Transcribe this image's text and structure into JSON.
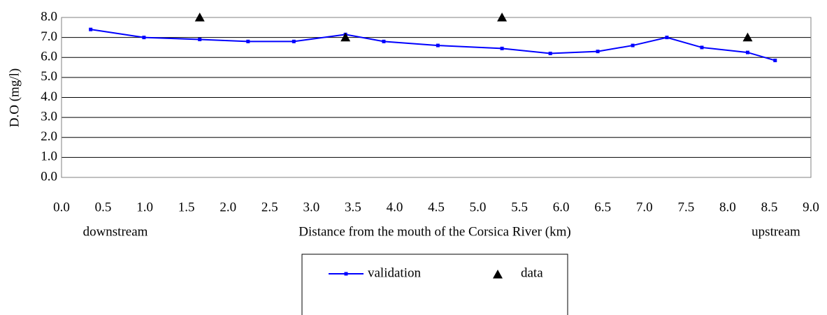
{
  "chart_data": {
    "type": "line",
    "x_label": "Distance from the mouth of the Corsica River (km)",
    "y_label": "D.O (mg/l)",
    "annotations": [
      "downstream",
      "upstream"
    ],
    "xlim": [
      0,
      9
    ],
    "ylim": [
      0,
      8
    ],
    "xticks": [
      {
        "value": 0,
        "label": "0.0"
      },
      {
        "value": 0.5,
        "label": "0.5"
      },
      {
        "value": 1,
        "label": "1.0"
      },
      {
        "value": 1.5,
        "label": "1.5"
      },
      {
        "value": 2,
        "label": "2.0"
      },
      {
        "value": 2.5,
        "label": "2.5"
      },
      {
        "value": 3,
        "label": "3.0"
      },
      {
        "value": 3.5,
        "label": "3.5"
      },
      {
        "value": 4,
        "label": "4.0"
      },
      {
        "value": 4.5,
        "label": "4.5"
      },
      {
        "value": 5,
        "label": "5.0"
      },
      {
        "value": 5.5,
        "label": "5.5"
      },
      {
        "value": 6,
        "label": "6.0"
      },
      {
        "value": 6.5,
        "label": "6.5"
      },
      {
        "value": 7,
        "label": "7.0"
      },
      {
        "value": 7.5,
        "label": "7.5"
      },
      {
        "value": 8,
        "label": "8.0"
      },
      {
        "value": 8.5,
        "label": "8.5"
      },
      {
        "value": 9,
        "label": "9.0"
      }
    ],
    "yticks": [
      {
        "value": 0,
        "label": "0.0"
      },
      {
        "value": 1,
        "label": "1.0"
      },
      {
        "value": 2,
        "label": "2.0"
      },
      {
        "value": 3,
        "label": "3.0"
      },
      {
        "value": 4,
        "label": "4.0"
      },
      {
        "value": 5,
        "label": "5.0"
      },
      {
        "value": 6,
        "label": "6.0"
      },
      {
        "value": 7,
        "label": "7.0"
      },
      {
        "value": 8,
        "label": "8.0"
      }
    ],
    "grid": true,
    "legend": "bottom",
    "series": [
      {
        "name": "validation",
        "color": "#0000ff",
        "marker": "point",
        "x": [
          0.35,
          0.99,
          1.66,
          2.24,
          2.79,
          3.41,
          3.87,
          4.52,
          5.29,
          5.87,
          6.44,
          6.86,
          7.27,
          7.69,
          8.24,
          8.57
        ],
        "values": [
          7.4,
          7.0,
          6.9,
          6.8,
          6.8,
          7.15,
          6.8,
          6.6,
          6.45,
          6.2,
          6.3,
          6.6,
          7.0,
          6.5,
          6.25,
          5.85
        ]
      },
      {
        "name": "data",
        "color": "#000000",
        "marker": "triangle",
        "x": [
          1.66,
          3.41,
          5.29,
          8.24
        ],
        "values": [
          8.0,
          7.0,
          8.0,
          7.0
        ]
      }
    ]
  }
}
